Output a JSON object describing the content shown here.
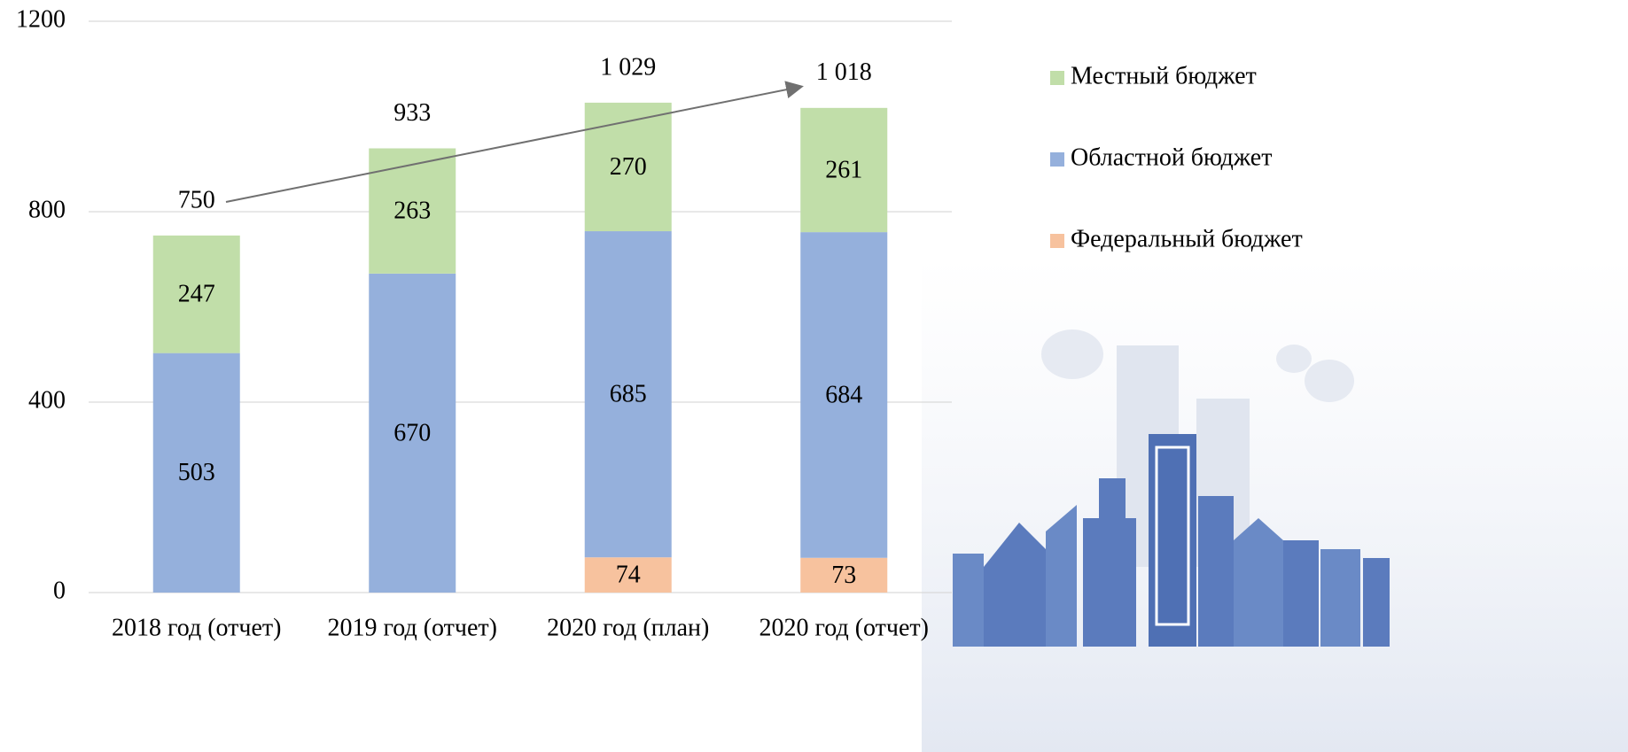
{
  "chart_data": {
    "type": "stacked_bar",
    "categories": [
      "2018 год (отчет)",
      "2019 год (отчет)",
      "2020 год (план)",
      "2020 год (отчет)"
    ],
    "series": [
      {
        "name": "Федеральный бюджет",
        "color": "#f7c29e",
        "values": [
          null,
          null,
          74,
          73
        ]
      },
      {
        "name": "Областной бюджет",
        "color": "#95b0dc",
        "values": [
          503,
          670,
          685,
          684
        ]
      },
      {
        "name": "Местный бюджет",
        "color": "#c1dea9",
        "values": [
          247,
          263,
          270,
          261
        ]
      }
    ],
    "totals": {
      "values": [
        750,
        933,
        1029,
        1018
      ],
      "value_labels": [
        "750",
        "933",
        "1 029",
        "1 018"
      ]
    },
    "ylim": [
      0,
      1200
    ],
    "yticks": [
      0,
      400,
      800,
      1200
    ],
    "grid": true,
    "legend": "right"
  }
}
